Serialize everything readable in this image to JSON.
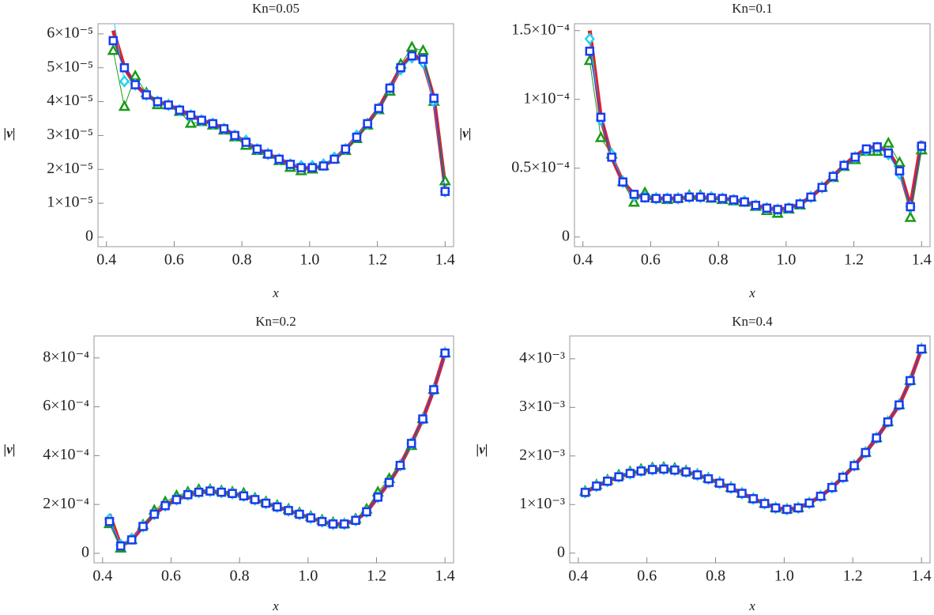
{
  "chart_data": [
    {
      "type": "line",
      "title": "Kn=0.05",
      "x_label": "x",
      "y_label": "|v|",
      "x": [
        0.42,
        0.453,
        0.485,
        0.518,
        0.551,
        0.583,
        0.616,
        0.649,
        0.681,
        0.714,
        0.747,
        0.779,
        0.812,
        0.845,
        0.877,
        0.91,
        0.943,
        0.975,
        1.008,
        1.041,
        1.073,
        1.106,
        1.139,
        1.171,
        1.204,
        1.237,
        1.269,
        1.302,
        1.335,
        1.367,
        1.4
      ],
      "xlim": [
        0.375,
        1.425
      ],
      "xticks": [
        0.4,
        0.6,
        0.8,
        {
          "value": 1,
          "label": "1.0"
        },
        1.2,
        1.4
      ],
      "ylim": [
        -2.8e-06,
        6.3e-05
      ],
      "yticks": [
        0,
        {
          "value": 1e-05,
          "label": "1×10⁻⁵"
        },
        {
          "value": 2e-05,
          "label": "2×10⁻⁵"
        },
        {
          "value": 3e-05,
          "label": "3×10⁻⁵"
        },
        {
          "value": 4e-05,
          "label": "4×10⁻⁵"
        },
        {
          "value": 5e-05,
          "label": "5×10⁻⁵"
        },
        {
          "value": 6e-05,
          "label": "6×10⁻⁵"
        }
      ],
      "series": [
        {
          "color": "#e0202a",
          "marker": "line",
          "values": [
            6.1e-05,
            5e-05,
            4.5e-05,
            4.2e-05,
            4e-05,
            3.9e-05,
            3.75e-05,
            3.6e-05,
            3.45e-05,
            3.35e-05,
            3.2e-05,
            3e-05,
            2.8e-05,
            2.6e-05,
            2.45e-05,
            2.3e-05,
            2.15e-05,
            2.05e-05,
            2.05e-05,
            2.1e-05,
            2.3e-05,
            2.6e-05,
            2.95e-05,
            3.35e-05,
            3.8e-05,
            4.4e-05,
            5e-05,
            5.4e-05,
            5.2e-05,
            4.1e-05,
            1.5e-05
          ]
        },
        {
          "color": "#1a9a1a",
          "marker": "triangle",
          "values": [
            5.5e-05,
            3.85e-05,
            4.75e-05,
            4.25e-05,
            3.9e-05,
            3.9e-05,
            3.7e-05,
            3.35e-05,
            3.4e-05,
            3.3e-05,
            3.15e-05,
            2.95e-05,
            2.7e-05,
            2.55e-05,
            2.45e-05,
            2.25e-05,
            2.05e-05,
            1.95e-05,
            2e-05,
            2.1e-05,
            2.3e-05,
            2.55e-05,
            2.9e-05,
            3.3e-05,
            3.75e-05,
            4.3e-05,
            5.1e-05,
            5.6e-05,
            5.5e-05,
            4e-05,
            1.65e-05
          ]
        },
        {
          "color": "#22d3f0",
          "marker": "diamond",
          "values": [
            6.5e-05,
            4.6e-05,
            4.5e-05,
            4.2e-05,
            4e-05,
            3.9e-05,
            3.75e-05,
            3.6e-05,
            3.45e-05,
            3.35e-05,
            3.2e-05,
            3e-05,
            2.85e-05,
            2.6e-05,
            2.45e-05,
            2.3e-05,
            2.15e-05,
            2.1e-05,
            2.1e-05,
            2.15e-05,
            2.35e-05,
            2.6e-05,
            3e-05,
            3.35e-05,
            3.8e-05,
            4.4e-05,
            4.95e-05,
            5.3e-05,
            5.15e-05,
            4e-05,
            1.35e-05
          ]
        },
        {
          "color": "#1a3cf0",
          "marker": "square",
          "values": [
            5.8e-05,
            5e-05,
            4.5e-05,
            4.2e-05,
            4e-05,
            3.9e-05,
            3.75e-05,
            3.6e-05,
            3.45e-05,
            3.35e-05,
            3.2e-05,
            3e-05,
            2.8e-05,
            2.6e-05,
            2.45e-05,
            2.3e-05,
            2.15e-05,
            2.05e-05,
            2.05e-05,
            2.1e-05,
            2.3e-05,
            2.6e-05,
            2.95e-05,
            3.35e-05,
            3.8e-05,
            4.4e-05,
            5e-05,
            5.35e-05,
            5.25e-05,
            4.1e-05,
            1.35e-05
          ]
        }
      ]
    },
    {
      "type": "line",
      "title": "Kn=0.1",
      "x_label": "x",
      "y_label": "|v|",
      "x": [
        0.42,
        0.453,
        0.485,
        0.518,
        0.551,
        0.583,
        0.616,
        0.649,
        0.681,
        0.714,
        0.747,
        0.779,
        0.812,
        0.845,
        0.877,
        0.91,
        0.943,
        0.975,
        1.008,
        1.041,
        1.073,
        1.106,
        1.139,
        1.171,
        1.204,
        1.237,
        1.269,
        1.302,
        1.335,
        1.367,
        1.4
      ],
      "xlim": [
        0.375,
        1.425
      ],
      "xticks": [
        0.4,
        0.6,
        0.8,
        {
          "value": 1,
          "label": "1.0"
        },
        1.2,
        1.4
      ],
      "ylim": [
        -7e-06,
        0.000155
      ],
      "yticks": [
        0,
        {
          "value": 5e-05,
          "label": "0.5×10⁻⁴"
        },
        {
          "value": 0.0001,
          "label": "1×10⁻⁴"
        },
        {
          "value": 0.00015,
          "label": "1.5×10⁻⁴"
        }
      ],
      "series": [
        {
          "color": "#e0202a",
          "marker": "line",
          "values": [
            0.00015,
            8.7e-05,
            5.8e-05,
            4e-05,
            3.1e-05,
            2.85e-05,
            2.8e-05,
            2.8e-05,
            2.8e-05,
            2.9e-05,
            2.9e-05,
            2.85e-05,
            2.8e-05,
            2.7e-05,
            2.55e-05,
            2.3e-05,
            2.1e-05,
            2e-05,
            2.1e-05,
            2.4e-05,
            2.9e-05,
            3.6e-05,
            4.4e-05,
            5.2e-05,
            5.9e-05,
            6.4e-05,
            6.6e-05,
            6.2e-05,
            4.9e-05,
            2.2e-05,
            7e-05
          ]
        },
        {
          "color": "#1a9a1a",
          "marker": "triangle",
          "values": [
            0.000128,
            7.2e-05,
            6e-05,
            4e-05,
            2.5e-05,
            3.2e-05,
            2.8e-05,
            2.7e-05,
            2.8e-05,
            3e-05,
            3e-05,
            2.8e-05,
            2.7e-05,
            2.6e-05,
            2.5e-05,
            2.2e-05,
            1.9e-05,
            1.7e-05,
            2e-05,
            2.3e-05,
            2.9e-05,
            3.6e-05,
            4.3e-05,
            5.1e-05,
            5.6e-05,
            6.2e-05,
            6.2e-05,
            6.8e-05,
            5.4e-05,
            1.4e-05,
            6.3e-05
          ]
        },
        {
          "color": "#22d3f0",
          "marker": "diamond",
          "values": [
            0.000144,
            8.5e-05,
            6e-05,
            4e-05,
            3e-05,
            2.9e-05,
            2.8e-05,
            2.8e-05,
            2.8e-05,
            2.9e-05,
            2.9e-05,
            2.9e-05,
            2.8e-05,
            2.7e-05,
            2.6e-05,
            2.3e-05,
            2.1e-05,
            2e-05,
            2.1e-05,
            2.4e-05,
            2.9e-05,
            3.6e-05,
            4.4e-05,
            5.2e-05,
            5.8e-05,
            6.3e-05,
            6.5e-05,
            6e-05,
            4.6e-05,
            2.2e-05,
            6.6e-05
          ]
        },
        {
          "color": "#1a3cf0",
          "marker": "square",
          "values": [
            0.000135,
            8.7e-05,
            5.8e-05,
            4e-05,
            3.1e-05,
            2.85e-05,
            2.8e-05,
            2.8e-05,
            2.8e-05,
            2.9e-05,
            2.9e-05,
            2.85e-05,
            2.8e-05,
            2.7e-05,
            2.55e-05,
            2.3e-05,
            2.1e-05,
            2e-05,
            2.1e-05,
            2.4e-05,
            2.9e-05,
            3.6e-05,
            4.4e-05,
            5.2e-05,
            5.8e-05,
            6.4e-05,
            6.55e-05,
            6.1e-05,
            4.8e-05,
            2.2e-05,
            6.6e-05
          ]
        }
      ]
    },
    {
      "type": "line",
      "title": "Kn=0.2",
      "x_label": "x",
      "y_label": "|v|",
      "x": [
        0.42,
        0.453,
        0.485,
        0.518,
        0.551,
        0.583,
        0.616,
        0.649,
        0.681,
        0.714,
        0.747,
        0.779,
        0.812,
        0.845,
        0.877,
        0.91,
        0.943,
        0.975,
        1.008,
        1.041,
        1.073,
        1.106,
        1.139,
        1.171,
        1.204,
        1.237,
        1.269,
        1.302,
        1.335,
        1.367,
        1.4
      ],
      "xlim": [
        0.375,
        1.425
      ],
      "xticks": [
        0.4,
        0.6,
        0.8,
        {
          "value": 1,
          "label": "1.0"
        },
        1.2,
        1.4
      ],
      "ylim": [
        -3.9e-05,
        0.00089
      ],
      "yticks": [
        0,
        {
          "value": 0.0002,
          "label": "2×10⁻⁴"
        },
        {
          "value": 0.0004,
          "label": "4×10⁻⁴"
        },
        {
          "value": 0.0006,
          "label": "6×10⁻⁴"
        },
        {
          "value": 0.0008,
          "label": "8×10⁻⁴"
        }
      ],
      "series": [
        {
          "color": "#e0202a",
          "marker": "line",
          "values": [
            0.00016,
            3e-05,
            5.5e-05,
            0.00011,
            0.00016,
            0.000195,
            0.00022,
            0.00024,
            0.00025,
            0.000255,
            0.00025,
            0.000245,
            0.000235,
            0.00022,
            0.000205,
            0.00019,
            0.000175,
            0.00016,
            0.000145,
            0.00013,
            0.00012,
            0.00012,
            0.000135,
            0.00017,
            0.00023,
            0.00029,
            0.00036,
            0.00045,
            0.00055,
            0.00067,
            0.00082
          ]
        },
        {
          "color": "#1a9a1a",
          "marker": "triangle",
          "values": [
            0.00012,
            2e-05,
            5.5e-05,
            0.000115,
            0.000175,
            0.00021,
            0.000235,
            0.00025,
            0.00026,
            0.00026,
            0.000255,
            0.00025,
            0.000245,
            0.000225,
            0.00021,
            0.000195,
            0.00018,
            0.000165,
            0.00015,
            0.000135,
            0.000125,
            0.00012,
            0.00014,
            0.00018,
            0.00025,
            0.000305,
            0.00036,
            0.00044,
            0.00055,
            0.00067,
            0.00082
          ]
        },
        {
          "color": "#22d3f0",
          "marker": "diamond",
          "values": [
            0.00014,
            3.5e-05,
            6e-05,
            0.00011,
            0.00016,
            0.000195,
            0.00022,
            0.00024,
            0.00025,
            0.000255,
            0.00025,
            0.000245,
            0.000235,
            0.00022,
            0.000205,
            0.00019,
            0.000175,
            0.00016,
            0.000145,
            0.00013,
            0.00012,
            0.00012,
            0.000135,
            0.00017,
            0.00023,
            0.00029,
            0.00036,
            0.00045,
            0.00055,
            0.00067,
            0.00082
          ]
        },
        {
          "color": "#1a3cf0",
          "marker": "square",
          "values": [
            0.00013,
            3e-05,
            5.5e-05,
            0.00011,
            0.00016,
            0.000195,
            0.00022,
            0.00024,
            0.00025,
            0.000255,
            0.00025,
            0.000245,
            0.000235,
            0.00022,
            0.000205,
            0.00019,
            0.000175,
            0.00016,
            0.000145,
            0.00013,
            0.00012,
            0.00012,
            0.000135,
            0.00017,
            0.00023,
            0.00029,
            0.00036,
            0.00045,
            0.00055,
            0.00067,
            0.00082
          ]
        }
      ]
    },
    {
      "type": "line",
      "title": "Kn=0.4",
      "x_label": "x",
      "y_label": "|v|",
      "x": [
        0.42,
        0.453,
        0.485,
        0.518,
        0.551,
        0.583,
        0.616,
        0.649,
        0.681,
        0.714,
        0.747,
        0.779,
        0.812,
        0.845,
        0.877,
        0.91,
        0.943,
        0.975,
        1.008,
        1.041,
        1.073,
        1.106,
        1.139,
        1.171,
        1.204,
        1.237,
        1.269,
        1.302,
        1.335,
        1.367,
        1.4
      ],
      "xlim": [
        0.375,
        1.425
      ],
      "xticks": [
        0.4,
        0.6,
        0.8,
        {
          "value": 1,
          "label": "1.0"
        },
        1.2,
        1.4
      ],
      "ylim": [
        -0.0002,
        0.00447
      ],
      "yticks": [
        0,
        {
          "value": 0.001,
          "label": "1×10⁻³"
        },
        {
          "value": 0.002,
          "label": "2×10⁻³"
        },
        {
          "value": 0.003,
          "label": "3×10⁻³"
        },
        {
          "value": 0.004,
          "label": "4×10⁻³"
        }
      ],
      "series": [
        {
          "color": "#e0202a",
          "marker": "line",
          "values": [
            0.00125,
            0.00138,
            0.00148,
            0.00157,
            0.00164,
            0.00169,
            0.00172,
            0.00173,
            0.00171,
            0.00167,
            0.00161,
            0.00153,
            0.00144,
            0.00134,
            0.00123,
            0.00112,
            0.00102,
            0.00093,
            0.0009,
            0.00093,
            0.00103,
            0.00117,
            0.00135,
            0.00156,
            0.0018,
            0.00207,
            0.00237,
            0.0027,
            0.00305,
            0.00355,
            0.0042
          ]
        },
        {
          "color": "#1a9a1a",
          "marker": "triangle",
          "values": [
            0.00127,
            0.0014,
            0.0015,
            0.0016,
            0.00167,
            0.00172,
            0.00175,
            0.00176,
            0.00174,
            0.00169,
            0.00162,
            0.00154,
            0.00145,
            0.00135,
            0.00123,
            0.00112,
            0.00102,
            0.00093,
            0.0009,
            0.00093,
            0.00103,
            0.00117,
            0.00135,
            0.00156,
            0.0018,
            0.00207,
            0.00237,
            0.0027,
            0.00305,
            0.00355,
            0.0042
          ]
        },
        {
          "color": "#22d3f0",
          "marker": "diamond",
          "values": [
            0.00125,
            0.00138,
            0.00148,
            0.00157,
            0.00164,
            0.00169,
            0.00172,
            0.00173,
            0.00171,
            0.00167,
            0.00161,
            0.00153,
            0.00144,
            0.00134,
            0.00123,
            0.00112,
            0.00102,
            0.00093,
            0.0009,
            0.00093,
            0.00103,
            0.00117,
            0.00135,
            0.00156,
            0.0018,
            0.00207,
            0.00237,
            0.0027,
            0.00305,
            0.00355,
            0.0042
          ]
        },
        {
          "color": "#1a3cf0",
          "marker": "square",
          "values": [
            0.00125,
            0.00138,
            0.00148,
            0.00157,
            0.00164,
            0.00169,
            0.00172,
            0.00173,
            0.00171,
            0.00167,
            0.00161,
            0.00153,
            0.00144,
            0.00134,
            0.00123,
            0.00112,
            0.00102,
            0.00093,
            0.0009,
            0.00093,
            0.00103,
            0.00117,
            0.00135,
            0.00156,
            0.0018,
            0.00207,
            0.00237,
            0.0027,
            0.00305,
            0.00355,
            0.0042
          ]
        }
      ]
    }
  ]
}
